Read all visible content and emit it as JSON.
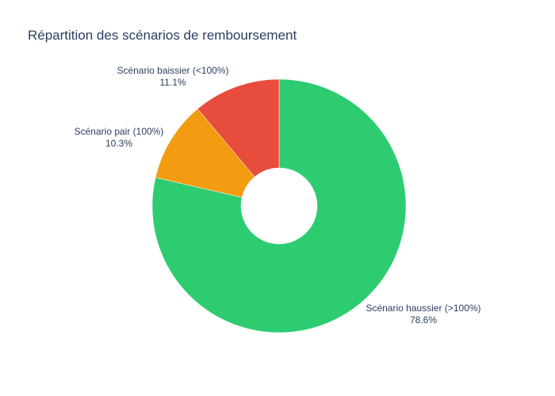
{
  "chart_data": {
    "type": "pie",
    "title": "Répartition des scénarios de remboursement",
    "hole": true,
    "legend": "none",
    "slices": [
      {
        "label": "Scénario haussier (>100%)",
        "percent_text": "78.6%",
        "value": 78.6,
        "color": "#2ecc71"
      },
      {
        "label": "Scénario pair (100%)",
        "percent_text": "10.3%",
        "value": 10.3,
        "color": "#f39c12"
      },
      {
        "label": "Scénario baissier (<100%)",
        "percent_text": "11.1%",
        "value": 11.1,
        "color": "#e74c3c"
      }
    ]
  }
}
